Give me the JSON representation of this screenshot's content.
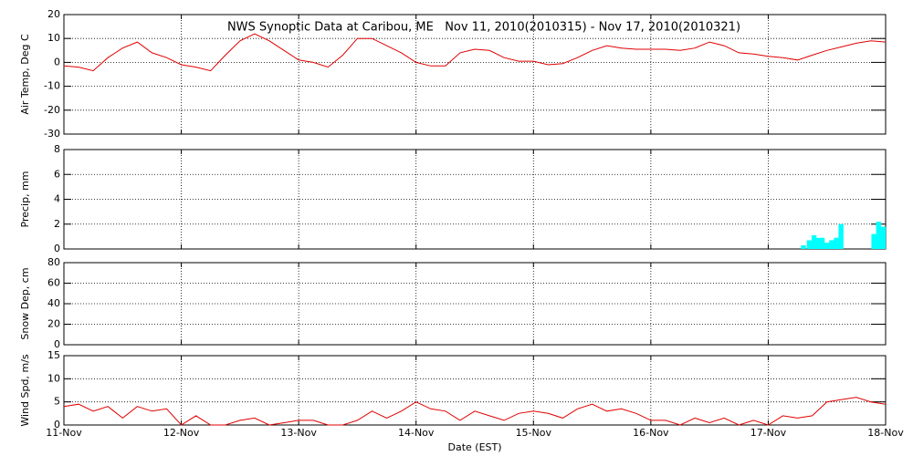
{
  "chart_data": [
    {
      "type": "line",
      "title": "NWS Synoptic Data at Caribou, ME   Nov 11, 2010(2010315) - Nov 17, 2010(2010321)",
      "ylabel": "Air Temp, Deg C",
      "color": "#e00000",
      "x": [
        11,
        11.125,
        11.25,
        11.375,
        11.5,
        11.625,
        11.75,
        11.875,
        12,
        12.125,
        12.25,
        12.375,
        12.5,
        12.625,
        12.75,
        12.875,
        13,
        13.125,
        13.25,
        13.375,
        13.5,
        13.625,
        13.75,
        13.875,
        14,
        14.125,
        14.25,
        14.375,
        14.5,
        14.625,
        14.75,
        14.875,
        15,
        15.125,
        15.25,
        15.375,
        15.5,
        15.625,
        15.75,
        15.875,
        16,
        16.125,
        16.25,
        16.375,
        16.5,
        16.625,
        16.75,
        16.875,
        17,
        17.125,
        17.25,
        17.375,
        17.5,
        17.625,
        17.75,
        17.875,
        18
      ],
      "values": [
        -1.5,
        -2,
        -3.5,
        2,
        6,
        8.5,
        4,
        2,
        -1,
        -2,
        -3.5,
        3,
        9,
        12,
        9,
        5,
        1,
        0,
        -2,
        3,
        10,
        10,
        7,
        4,
        0,
        -1.5,
        -1.5,
        4,
        5.5,
        5,
        2,
        0.5,
        0.5,
        -1,
        -0.5,
        2,
        5,
        7,
        6,
        5.5,
        5.5,
        5.5,
        5,
        6,
        8.5,
        7,
        4,
        3.5,
        2.5,
        2,
        1,
        3,
        5,
        6.5,
        8,
        9,
        8.5
      ],
      "ylim": [
        -30,
        20
      ],
      "yticks": [
        -30,
        -20,
        -10,
        0,
        10,
        20
      ],
      "grid": true
    },
    {
      "type": "bar",
      "ylabel": "Precip, mm",
      "color": "#00ffff",
      "x": [
        17.3,
        17.35,
        17.39,
        17.42,
        17.46,
        17.5,
        17.54,
        17.58,
        17.62,
        17.9,
        17.94,
        17.98
      ],
      "values": [
        0.3,
        0.7,
        1.1,
        0.9,
        0.9,
        0.5,
        0.7,
        0.9,
        2.0,
        1.2,
        2.2,
        1.8
      ],
      "ylim": [
        0,
        8
      ],
      "yticks": [
        0,
        2,
        4,
        6,
        8
      ],
      "grid": true
    },
    {
      "type": "line",
      "ylabel": "Snow Dep, cm",
      "ylim": [
        0,
        80
      ],
      "yticks": [
        0,
        20,
        40,
        60,
        80
      ],
      "grid": true
    },
    {
      "type": "line",
      "ylabel": "Wind Spd, m/s",
      "xlabel": "Date (EST)",
      "color": "#e00000",
      "x": [
        11,
        11.125,
        11.25,
        11.375,
        11.5,
        11.625,
        11.75,
        11.875,
        12,
        12.125,
        12.25,
        12.375,
        12.5,
        12.625,
        12.75,
        12.875,
        13,
        13.125,
        13.25,
        13.375,
        13.5,
        13.625,
        13.75,
        13.875,
        14,
        14.125,
        14.25,
        14.375,
        14.5,
        14.625,
        14.75,
        14.875,
        15,
        15.125,
        15.25,
        15.375,
        15.5,
        15.625,
        15.75,
        15.875,
        16,
        16.125,
        16.25,
        16.375,
        16.5,
        16.625,
        16.75,
        16.875,
        17,
        17.125,
        17.25,
        17.375,
        17.5,
        17.625,
        17.75,
        17.875,
        18
      ],
      "values": [
        4,
        4.5,
        3,
        4,
        1.5,
        4,
        3,
        3.5,
        0,
        2,
        0,
        0,
        1,
        1.5,
        0,
        0.5,
        1,
        1,
        0,
        0,
        1,
        3,
        1.5,
        3,
        5,
        3.5,
        3,
        1,
        3,
        2,
        1,
        2.5,
        3,
        2.5,
        1.5,
        3.5,
        4.5,
        3,
        3.5,
        2.5,
        1,
        1,
        0,
        1.5,
        0.5,
        1.5,
        0,
        1,
        0,
        2,
        1.5,
        2,
        5,
        5.5,
        6,
        5,
        4.5
      ],
      "ylim": [
        0,
        15
      ],
      "yticks": [
        0,
        5,
        10,
        15
      ],
      "grid": true,
      "xlim": [
        11,
        18
      ],
      "xticks": [
        {
          "value": 11,
          "label": "11-Nov"
        },
        {
          "value": 12,
          "label": "12-Nov"
        },
        {
          "value": 13,
          "label": "13-Nov"
        },
        {
          "value": 14,
          "label": "14-Nov"
        },
        {
          "value": 15,
          "label": "15-Nov"
        },
        {
          "value": 16,
          "label": "16-Nov"
        },
        {
          "value": 17,
          "label": "17-Nov"
        },
        {
          "value": 18,
          "label": "18-Nov"
        }
      ]
    }
  ]
}
